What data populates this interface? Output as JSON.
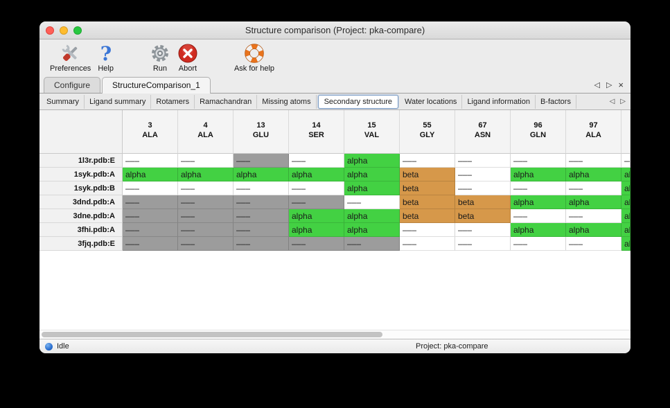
{
  "window": {
    "title": "Structure comparison (Project: pka-compare)"
  },
  "toolbar": {
    "items": [
      {
        "label": "Preferences",
        "icon": "tools-icon"
      },
      {
        "label": "Help",
        "icon": "question-icon"
      },
      {
        "label": "Run",
        "icon": "gear-icon"
      },
      {
        "label": "Abort",
        "icon": "abort-icon"
      },
      {
        "label": "Ask for help",
        "icon": "lifebuoy-icon"
      }
    ]
  },
  "main_tabs": {
    "items": [
      {
        "label": "Configure",
        "active": false
      },
      {
        "label": "StructureComparison_1",
        "active": true
      }
    ],
    "nav_left": "◁",
    "nav_right": "▷",
    "close": "×"
  },
  "sub_tabs": {
    "selected": "Secondary structure",
    "items": [
      {
        "label": "Summary"
      },
      {
        "label": "Ligand summary"
      },
      {
        "label": "Rotamers"
      },
      {
        "label": "Ramachandran"
      },
      {
        "label": "Missing atoms"
      },
      {
        "label": "Secondary structure"
      },
      {
        "label": "Water locations"
      },
      {
        "label": "Ligand information"
      },
      {
        "label": "B-factors"
      }
    ],
    "nav_left": "◁",
    "nav_right": "▷"
  },
  "table": {
    "columns": [
      {
        "num": "3",
        "res": "ALA"
      },
      {
        "num": "4",
        "res": "ALA"
      },
      {
        "num": "13",
        "res": "GLU"
      },
      {
        "num": "14",
        "res": "SER"
      },
      {
        "num": "15",
        "res": "VAL"
      },
      {
        "num": "55",
        "res": "GLY"
      },
      {
        "num": "67",
        "res": "ASN"
      },
      {
        "num": "96",
        "res": "GLN"
      },
      {
        "num": "97",
        "res": "ALA"
      },
      {
        "num": "",
        "res": ""
      }
    ],
    "cell_types": {
      "a": {
        "text": "alpha",
        "bg": "#43d143"
      },
      "b": {
        "text": "beta",
        "bg": "#d6984a"
      },
      "w": {
        "text": "–––",
        "bg": "#ffffff"
      },
      "g": {
        "text": "–––",
        "bg": "#9c9c9c"
      }
    },
    "rows": [
      {
        "name": "1l3r.pdb:E",
        "cells": [
          "w",
          "w",
          "g",
          "w",
          "a",
          "w",
          "w",
          "w",
          "w",
          "w"
        ]
      },
      {
        "name": "1syk.pdb:A",
        "cells": [
          "a",
          "a",
          "a",
          "a",
          "a",
          "b",
          "w",
          "a",
          "a",
          "a"
        ]
      },
      {
        "name": "1syk.pdb:B",
        "cells": [
          "w",
          "w",
          "w",
          "w",
          "a",
          "b",
          "w",
          "w",
          "w",
          "a"
        ]
      },
      {
        "name": "3dnd.pdb:A",
        "cells": [
          "g",
          "g",
          "g",
          "g",
          "w",
          "b",
          "b",
          "a",
          "a",
          "a"
        ]
      },
      {
        "name": "3dne.pdb:A",
        "cells": [
          "g",
          "g",
          "g",
          "a",
          "a",
          "b",
          "b",
          "w",
          "w",
          "a"
        ]
      },
      {
        "name": "3fhi.pdb:A",
        "cells": [
          "g",
          "g",
          "g",
          "a",
          "a",
          "w",
          "w",
          "a",
          "a",
          "a"
        ]
      },
      {
        "name": "3fjq.pdb:E",
        "cells": [
          "g",
          "g",
          "g",
          "g",
          "g",
          "w",
          "w",
          "w",
          "w",
          "a"
        ]
      }
    ]
  },
  "statusbar": {
    "status": "Idle",
    "project": "Project: pka-compare"
  }
}
